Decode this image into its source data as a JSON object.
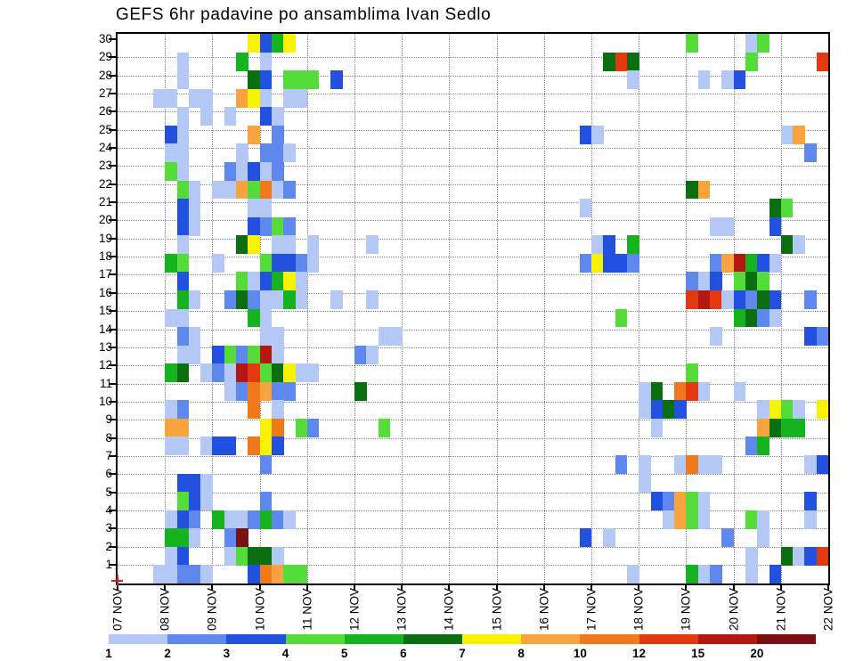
{
  "title": "GEFS 6hr padavine po ansamblima Ivan Sedlo",
  "chart_data": {
    "type": "heatmap",
    "description": "GEFS ensemble 6-hourly precipitation per member (y: ensemble members 1-30, x: 6-hour slots from 07 NOV to 22 NOV), values binned by the color legend (mm).",
    "x_labels": [
      "07 NOV",
      "08 NOV",
      "09 NOV",
      "10 NOV",
      "11 NOV",
      "12 NOV",
      "13 NOV",
      "14 NOV",
      "15 NOV",
      "16 NOV",
      "17 NOV",
      "18 NOV",
      "19 NOV",
      "20 NOV",
      "21 NOV",
      "22 NOV"
    ],
    "y_labels": [
      "30",
      "29",
      "28",
      "27",
      "26",
      "25",
      "24",
      "23",
      "22",
      "21",
      "20",
      "19",
      "18",
      "17",
      "16",
      "15",
      "14",
      "13",
      "12",
      "11",
      "10",
      "9",
      "8",
      "7",
      "6",
      "5",
      "4",
      "3",
      "2",
      "1"
    ],
    "n_cols": 60,
    "cols_per_day": 4,
    "n_rows": 30,
    "grid": "dotted",
    "legend_position": "bottom",
    "legend": {
      "labels": [
        "1",
        "2",
        "3",
        "4",
        "5",
        "6",
        "7",
        "8",
        "10",
        "12",
        "15",
        "20"
      ],
      "colors": [
        "#b4c8f5",
        "#5e88ee",
        "#2251e0",
        "#55dc3a",
        "#16b321",
        "#0b6e11",
        "#f7f203",
        "#f8a33e",
        "#f0791b",
        "#e23911",
        "#b41813",
        "#7a1011"
      ]
    },
    "origin_marker_color": "#d42020",
    "cells": [
      [
        30,
        11,
        7
      ],
      [
        30,
        12,
        3
      ],
      [
        30,
        13,
        5
      ],
      [
        30,
        14,
        7
      ],
      [
        30,
        48,
        4
      ],
      [
        30,
        53,
        1
      ],
      [
        30,
        54,
        4
      ],
      [
        29,
        5,
        1
      ],
      [
        29,
        10,
        5
      ],
      [
        29,
        12,
        1
      ],
      [
        29,
        41,
        6
      ],
      [
        29,
        42,
        10
      ],
      [
        29,
        43,
        6
      ],
      [
        29,
        53,
        4
      ],
      [
        29,
        59,
        10
      ],
      [
        28,
        5,
        1
      ],
      [
        28,
        11,
        6
      ],
      [
        28,
        12,
        3
      ],
      [
        28,
        14,
        4
      ],
      [
        28,
        15,
        4
      ],
      [
        28,
        16,
        4
      ],
      [
        28,
        18,
        3
      ],
      [
        28,
        43,
        1
      ],
      [
        28,
        49,
        1
      ],
      [
        28,
        51,
        1
      ],
      [
        28,
        52,
        3
      ],
      [
        27,
        3,
        1
      ],
      [
        27,
        4,
        1
      ],
      [
        27,
        6,
        1
      ],
      [
        27,
        7,
        1
      ],
      [
        27,
        10,
        8
      ],
      [
        27,
        11,
        7
      ],
      [
        27,
        12,
        1
      ],
      [
        27,
        14,
        1
      ],
      [
        27,
        15,
        1
      ],
      [
        26,
        5,
        1
      ],
      [
        26,
        7,
        1
      ],
      [
        26,
        9,
        1
      ],
      [
        26,
        12,
        3
      ],
      [
        26,
        13,
        1
      ],
      [
        25,
        4,
        3
      ],
      [
        25,
        5,
        1
      ],
      [
        25,
        11,
        8
      ],
      [
        25,
        13,
        2
      ],
      [
        25,
        39,
        3
      ],
      [
        25,
        40,
        1
      ],
      [
        25,
        56,
        1
      ],
      [
        25,
        57,
        8
      ],
      [
        24,
        4,
        1
      ],
      [
        24,
        5,
        1
      ],
      [
        24,
        10,
        1
      ],
      [
        24,
        12,
        2
      ],
      [
        24,
        13,
        2
      ],
      [
        24,
        14,
        1
      ],
      [
        24,
        58,
        2
      ],
      [
        23,
        4,
        4
      ],
      [
        23,
        5,
        1
      ],
      [
        23,
        9,
        2
      ],
      [
        23,
        10,
        1
      ],
      [
        23,
        11,
        3
      ],
      [
        23,
        12,
        1
      ],
      [
        23,
        13,
        2
      ],
      [
        22,
        5,
        4
      ],
      [
        22,
        6,
        1
      ],
      [
        22,
        8,
        1
      ],
      [
        22,
        9,
        1
      ],
      [
        22,
        10,
        8
      ],
      [
        22,
        11,
        4
      ],
      [
        22,
        12,
        9
      ],
      [
        22,
        13,
        1
      ],
      [
        22,
        14,
        2
      ],
      [
        22,
        48,
        6
      ],
      [
        22,
        49,
        8
      ],
      [
        21,
        5,
        3
      ],
      [
        21,
        6,
        1
      ],
      [
        21,
        11,
        1
      ],
      [
        21,
        12,
        1
      ],
      [
        21,
        39,
        1
      ],
      [
        21,
        55,
        6
      ],
      [
        21,
        56,
        4
      ],
      [
        20,
        5,
        3
      ],
      [
        20,
        6,
        1
      ],
      [
        20,
        11,
        3
      ],
      [
        20,
        12,
        2
      ],
      [
        20,
        13,
        4
      ],
      [
        20,
        14,
        2
      ],
      [
        20,
        50,
        1
      ],
      [
        20,
        51,
        1
      ],
      [
        20,
        55,
        3
      ],
      [
        19,
        5,
        1
      ],
      [
        19,
        10,
        6
      ],
      [
        19,
        11,
        7
      ],
      [
        19,
        13,
        1
      ],
      [
        19,
        14,
        1
      ],
      [
        19,
        16,
        1
      ],
      [
        19,
        21,
        1
      ],
      [
        19,
        40,
        1
      ],
      [
        19,
        41,
        3
      ],
      [
        19,
        43,
        5
      ],
      [
        19,
        56,
        6
      ],
      [
        19,
        57,
        1
      ],
      [
        18,
        4,
        5
      ],
      [
        18,
        5,
        4
      ],
      [
        18,
        8,
        1
      ],
      [
        18,
        12,
        4
      ],
      [
        18,
        13,
        3
      ],
      [
        18,
        14,
        3
      ],
      [
        18,
        15,
        2
      ],
      [
        18,
        16,
        1
      ],
      [
        18,
        39,
        2
      ],
      [
        18,
        40,
        7
      ],
      [
        18,
        41,
        3
      ],
      [
        18,
        42,
        3
      ],
      [
        18,
        43,
        2
      ],
      [
        18,
        50,
        2
      ],
      [
        18,
        51,
        8
      ],
      [
        18,
        52,
        11
      ],
      [
        18,
        53,
        5
      ],
      [
        18,
        54,
        3
      ],
      [
        18,
        55,
        1
      ],
      [
        17,
        5,
        3
      ],
      [
        17,
        10,
        4
      ],
      [
        17,
        11,
        1
      ],
      [
        17,
        12,
        3
      ],
      [
        17,
        13,
        5
      ],
      [
        17,
        14,
        7
      ],
      [
        17,
        15,
        1
      ],
      [
        17,
        48,
        2
      ],
      [
        17,
        49,
        1
      ],
      [
        17,
        50,
        3
      ],
      [
        17,
        52,
        4
      ],
      [
        17,
        53,
        6
      ],
      [
        17,
        54,
        4
      ],
      [
        16,
        5,
        5
      ],
      [
        16,
        6,
        1
      ],
      [
        16,
        9,
        2
      ],
      [
        16,
        10,
        6
      ],
      [
        16,
        11,
        2
      ],
      [
        16,
        12,
        1
      ],
      [
        16,
        13,
        1
      ],
      [
        16,
        14,
        5
      ],
      [
        16,
        15,
        1
      ],
      [
        16,
        18,
        1
      ],
      [
        16,
        21,
        1
      ],
      [
        16,
        48,
        10
      ],
      [
        16,
        49,
        11
      ],
      [
        16,
        50,
        10
      ],
      [
        16,
        51,
        1
      ],
      [
        16,
        52,
        3
      ],
      [
        16,
        53,
        2
      ],
      [
        16,
        54,
        6
      ],
      [
        16,
        55,
        3
      ],
      [
        16,
        58,
        2
      ],
      [
        15,
        4,
        1
      ],
      [
        15,
        5,
        1
      ],
      [
        15,
        11,
        5
      ],
      [
        15,
        12,
        1
      ],
      [
        15,
        42,
        4
      ],
      [
        15,
        52,
        5
      ],
      [
        15,
        53,
        6
      ],
      [
        15,
        54,
        2
      ],
      [
        15,
        55,
        1
      ],
      [
        14,
        5,
        2
      ],
      [
        14,
        6,
        1
      ],
      [
        14,
        12,
        1
      ],
      [
        14,
        13,
        1
      ],
      [
        14,
        22,
        1
      ],
      [
        14,
        23,
        1
      ],
      [
        14,
        50,
        1
      ],
      [
        14,
        58,
        3
      ],
      [
        14,
        59,
        2
      ],
      [
        13,
        5,
        1
      ],
      [
        13,
        6,
        1
      ],
      [
        13,
        8,
        3
      ],
      [
        13,
        9,
        4
      ],
      [
        13,
        10,
        2
      ],
      [
        13,
        11,
        4
      ],
      [
        13,
        12,
        11
      ],
      [
        13,
        13,
        1
      ],
      [
        13,
        20,
        2
      ],
      [
        13,
        21,
        1
      ],
      [
        12,
        4,
        5
      ],
      [
        12,
        5,
        6
      ],
      [
        12,
        7,
        1
      ],
      [
        12,
        8,
        2
      ],
      [
        12,
        9,
        1
      ],
      [
        12,
        10,
        11
      ],
      [
        12,
        11,
        10
      ],
      [
        12,
        12,
        4
      ],
      [
        12,
        13,
        6
      ],
      [
        12,
        14,
        7
      ],
      [
        12,
        15,
        1
      ],
      [
        12,
        16,
        1
      ],
      [
        12,
        48,
        4
      ],
      [
        11,
        9,
        1
      ],
      [
        11,
        10,
        2
      ],
      [
        11,
        11,
        9
      ],
      [
        11,
        12,
        8
      ],
      [
        11,
        13,
        2
      ],
      [
        11,
        14,
        2
      ],
      [
        11,
        20,
        6
      ],
      [
        11,
        44,
        1
      ],
      [
        11,
        45,
        6
      ],
      [
        11,
        47,
        9
      ],
      [
        11,
        48,
        10
      ],
      [
        11,
        49,
        1
      ],
      [
        11,
        52,
        1
      ],
      [
        10,
        4,
        1
      ],
      [
        10,
        5,
        2
      ],
      [
        10,
        11,
        9
      ],
      [
        10,
        13,
        1
      ],
      [
        10,
        44,
        1
      ],
      [
        10,
        45,
        3
      ],
      [
        10,
        46,
        6
      ],
      [
        10,
        47,
        3
      ],
      [
        10,
        54,
        1
      ],
      [
        10,
        55,
        7
      ],
      [
        10,
        56,
        4
      ],
      [
        10,
        57,
        1
      ],
      [
        10,
        59,
        7
      ],
      [
        9,
        4,
        8
      ],
      [
        9,
        5,
        8
      ],
      [
        9,
        12,
        7
      ],
      [
        9,
        13,
        9
      ],
      [
        9,
        15,
        4
      ],
      [
        9,
        16,
        2
      ],
      [
        9,
        22,
        4
      ],
      [
        9,
        45,
        1
      ],
      [
        9,
        54,
        8
      ],
      [
        9,
        55,
        6
      ],
      [
        9,
        56,
        5
      ],
      [
        9,
        57,
        5
      ],
      [
        8,
        4,
        1
      ],
      [
        8,
        5,
        1
      ],
      [
        8,
        7,
        1
      ],
      [
        8,
        8,
        3
      ],
      [
        8,
        9,
        3
      ],
      [
        8,
        11,
        9
      ],
      [
        8,
        12,
        7
      ],
      [
        8,
        13,
        3
      ],
      [
        8,
        53,
        2
      ],
      [
        8,
        54,
        5
      ],
      [
        7,
        12,
        2
      ],
      [
        7,
        42,
        2
      ],
      [
        7,
        44,
        1
      ],
      [
        7,
        47,
        1
      ],
      [
        7,
        48,
        9
      ],
      [
        7,
        49,
        1
      ],
      [
        7,
        50,
        1
      ],
      [
        7,
        58,
        1
      ],
      [
        7,
        59,
        3
      ],
      [
        6,
        5,
        3
      ],
      [
        6,
        6,
        3
      ],
      [
        6,
        7,
        1
      ],
      [
        6,
        44,
        1
      ],
      [
        5,
        5,
        4
      ],
      [
        5,
        6,
        3
      ],
      [
        5,
        7,
        1
      ],
      [
        5,
        12,
        2
      ],
      [
        5,
        45,
        3
      ],
      [
        5,
        46,
        2
      ],
      [
        5,
        47,
        8
      ],
      [
        5,
        48,
        4
      ],
      [
        5,
        49,
        1
      ],
      [
        5,
        58,
        3
      ],
      [
        4,
        4,
        1
      ],
      [
        4,
        5,
        3
      ],
      [
        4,
        6,
        2
      ],
      [
        4,
        8,
        5
      ],
      [
        4,
        9,
        1
      ],
      [
        4,
        10,
        1
      ],
      [
        4,
        11,
        2
      ],
      [
        4,
        12,
        5
      ],
      [
        4,
        13,
        2
      ],
      [
        4,
        14,
        1
      ],
      [
        4,
        46,
        1
      ],
      [
        4,
        47,
        8
      ],
      [
        4,
        48,
        4
      ],
      [
        4,
        49,
        1
      ],
      [
        4,
        53,
        4
      ],
      [
        4,
        54,
        1
      ],
      [
        4,
        58,
        1
      ],
      [
        3,
        4,
        5
      ],
      [
        3,
        5,
        5
      ],
      [
        3,
        6,
        1
      ],
      [
        3,
        9,
        2
      ],
      [
        3,
        10,
        12
      ],
      [
        3,
        39,
        3
      ],
      [
        3,
        41,
        1
      ],
      [
        3,
        51,
        2
      ],
      [
        3,
        54,
        1
      ],
      [
        2,
        4,
        1
      ],
      [
        2,
        5,
        3
      ],
      [
        2,
        9,
        1
      ],
      [
        2,
        10,
        4
      ],
      [
        2,
        11,
        6
      ],
      [
        2,
        12,
        6
      ],
      [
        2,
        13,
        1
      ],
      [
        2,
        53,
        1
      ],
      [
        2,
        56,
        6
      ],
      [
        2,
        57,
        1
      ],
      [
        2,
        58,
        3
      ],
      [
        2,
        59,
        10
      ],
      [
        1,
        3,
        1
      ],
      [
        1,
        4,
        1
      ],
      [
        1,
        5,
        2
      ],
      [
        1,
        6,
        2
      ],
      [
        1,
        7,
        1
      ],
      [
        1,
        11,
        3
      ],
      [
        1,
        12,
        9
      ],
      [
        1,
        13,
        8
      ],
      [
        1,
        14,
        4
      ],
      [
        1,
        15,
        4
      ],
      [
        1,
        43,
        1
      ],
      [
        1,
        48,
        5
      ],
      [
        1,
        49,
        1
      ],
      [
        1,
        50,
        2
      ],
      [
        1,
        53,
        1
      ],
      [
        1,
        55,
        3
      ]
    ]
  }
}
